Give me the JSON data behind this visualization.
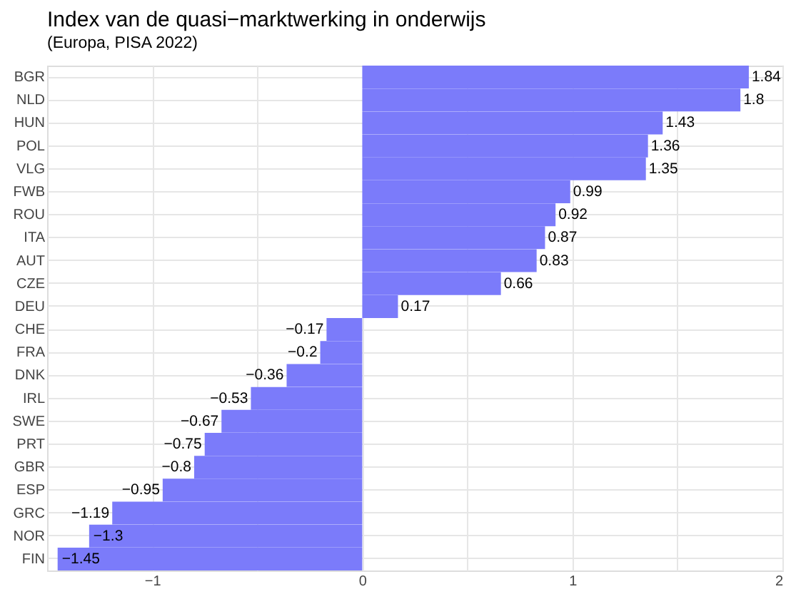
{
  "chart_data": {
    "type": "bar",
    "orientation": "horizontal",
    "title": "Index van de quasi−marktwerking in onderwijs",
    "subtitle": "(Europa, PISA 2022)",
    "categories": [
      "BGR",
      "NLD",
      "HUN",
      "POL",
      "VLG",
      "FWB",
      "ROU",
      "ITA",
      "AUT",
      "CZE",
      "DEU",
      "CHE",
      "FRA",
      "DNK",
      "IRL",
      "SWE",
      "PRT",
      "GBR",
      "ESP",
      "GRC",
      "NOR",
      "FIN"
    ],
    "values": [
      1.84,
      1.8,
      1.43,
      1.36,
      1.35,
      0.99,
      0.92,
      0.87,
      0.83,
      0.66,
      0.17,
      -0.17,
      -0.2,
      -0.36,
      -0.53,
      -0.67,
      -0.75,
      -0.8,
      -0.95,
      -1.19,
      -1.3,
      -1.45
    ],
    "value_labels": [
      "1.84",
      "1.8",
      "1.43",
      "1.36",
      "1.35",
      "0.99",
      "0.92",
      "0.87",
      "0.83",
      "0.66",
      "0.17",
      "−0.17",
      "−0.2",
      "−0.36",
      "−0.53",
      "−0.67",
      "−0.75",
      "−0.8",
      "−0.95",
      "−1.19",
      "−1.3",
      "−1.45"
    ],
    "color": "#7b7bfa",
    "xlim": [
      -1.5,
      2
    ],
    "xticks": [
      {
        "value": -1,
        "label": "−1"
      },
      0,
      1,
      2,
      {
        "value": -0.5,
        "label": null
      },
      {
        "value": 0.5,
        "label": null
      },
      {
        "value": 1.5,
        "label": null
      }
    ],
    "grid": true
  }
}
